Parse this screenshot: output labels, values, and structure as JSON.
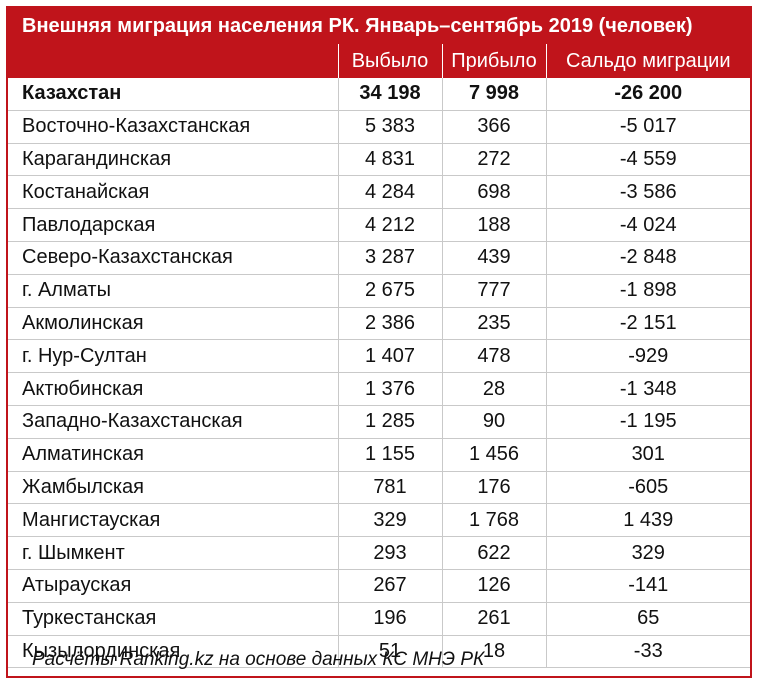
{
  "title": "Внешняя миграция населения РК. Январь–сентябрь 2019 (человек)",
  "columns": [
    "",
    "Выбыло",
    "Прибыло",
    "Сальдо миграции"
  ],
  "rows": [
    {
      "region": "Казахстан",
      "out": "34 198",
      "in": "7 998",
      "balance": "-26 200",
      "total": true
    },
    {
      "region": "Восточно-Казахстанская",
      "out": "5 383",
      "in": "366",
      "balance": "-5 017"
    },
    {
      "region": "Карагандинская",
      "out": "4 831",
      "in": "272",
      "balance": "-4 559"
    },
    {
      "region": "Костанайская",
      "out": "4 284",
      "in": "698",
      "balance": "-3 586"
    },
    {
      "region": "Павлодарская",
      "out": "4 212",
      "in": "188",
      "balance": "-4 024"
    },
    {
      "region": "Северо-Казахстанская",
      "out": "3 287",
      "in": "439",
      "balance": "-2 848"
    },
    {
      "region": "г. Алматы",
      "out": "2 675",
      "in": "777",
      "balance": "-1 898"
    },
    {
      "region": "Акмолинская",
      "out": "2 386",
      "in": "235",
      "balance": "-2 151"
    },
    {
      "region": "г. Нур-Султан",
      "out": "1 407",
      "in": "478",
      "balance": "-929"
    },
    {
      "region": "Актюбинская",
      "out": "1 376",
      "in": "28",
      "balance": "-1 348"
    },
    {
      "region": "Западно-Казахстанская",
      "out": "1 285",
      "in": "90",
      "balance": "-1 195"
    },
    {
      "region": "Алматинская",
      "out": "1 155",
      "in": "1 456",
      "balance": "301"
    },
    {
      "region": "Жамбылская",
      "out": "781",
      "in": "176",
      "balance": "-605"
    },
    {
      "region": "Мангистауская",
      "out": "329",
      "in": "1 768",
      "balance": "1 439"
    },
    {
      "region": "г. Шымкент",
      "out": "293",
      "in": "622",
      "balance": "329"
    },
    {
      "region": "Атырауская",
      "out": "267",
      "in": "126",
      "balance": "-141"
    },
    {
      "region": "Туркестанская",
      "out": "196",
      "in": "261",
      "balance": "65"
    },
    {
      "region": "Кызылординская",
      "out": "51",
      "in": "18",
      "balance": "-33"
    }
  ],
  "footer": "Расчёты Ranking.kz на основе данных КС МНЭ РК",
  "colors": {
    "header_bg": "#c0141b",
    "header_text": "#ffffff",
    "grid": "#c9c9c9"
  }
}
